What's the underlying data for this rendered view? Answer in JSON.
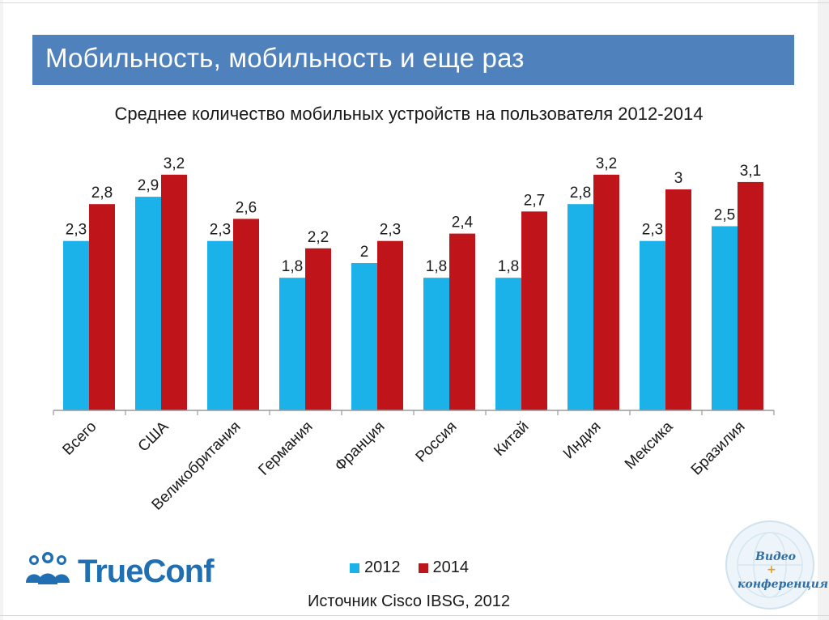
{
  "slide": {
    "title": "Мобильность, мобильность и еще раз",
    "source": "Источник Cisco  IBSG, 2012"
  },
  "logo": {
    "name": "TrueConf"
  },
  "stamp": {
    "line1": "Видео",
    "plus": "+",
    "line2": "конференция"
  },
  "colors": {
    "title_bar": "#4f81bd",
    "series_2012": "#1ab2e8",
    "series_2014": "#c0141b"
  },
  "chart_data": {
    "type": "bar",
    "title": "Среднее количество мобильных устройств на пользователя 2012-2014",
    "categories": [
      "Всего",
      "США",
      "Великобритания",
      "Германия",
      "Франция",
      "Россия",
      "Китай",
      "Индия",
      "Мексика",
      "Бразилия"
    ],
    "series": [
      {
        "name": "2012",
        "values": [
          2.3,
          2.9,
          2.3,
          1.8,
          2,
          1.8,
          1.8,
          2.8,
          2.3,
          2.5
        ],
        "labels": [
          "2,3",
          "2,9",
          "2,3",
          "1,8",
          "2",
          "1,8",
          "1,8",
          "2,8",
          "2,3",
          "2,5"
        ]
      },
      {
        "name": "2014",
        "values": [
          2.8,
          3.2,
          2.6,
          2.2,
          2.3,
          2.4,
          2.7,
          3.2,
          3,
          3.1
        ],
        "labels": [
          "2,8",
          "3,2",
          "2,6",
          "2,2",
          "2,3",
          "2,4",
          "2,7",
          "3,2",
          "3",
          "3,1"
        ]
      }
    ],
    "xlabel": "",
    "ylabel": "",
    "ylim": [
      0,
      3.2
    ],
    "legend": "bottom-center",
    "grid": false
  }
}
